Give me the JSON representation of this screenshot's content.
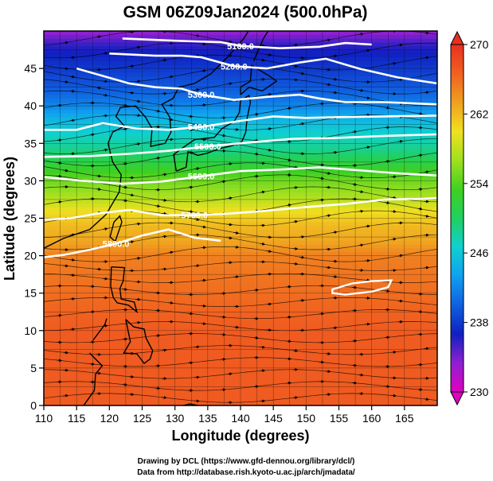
{
  "chart_data": {
    "type": "heatmap",
    "title": "GSM 06Z09Jan2024 (500.0hPa)",
    "xlabel": "Longitude (degrees)",
    "ylabel": "Latitude  (degrees)",
    "xlim": [
      110,
      170
    ],
    "ylim": [
      0,
      50
    ],
    "x_ticks": [
      110,
      115,
      120,
      125,
      130,
      135,
      140,
      145,
      150,
      155,
      160,
      165
    ],
    "y_ticks": [
      0,
      5,
      10,
      15,
      20,
      25,
      30,
      35,
      40,
      45
    ],
    "colorbar": {
      "min": 230,
      "max": 270,
      "ticks": [
        230,
        238,
        246,
        254,
        262,
        270
      ],
      "colors": [
        "#e000c0",
        "#9020d0",
        "#1020c0",
        "#1060e0",
        "#10a0f0",
        "#10d0d0",
        "#20d060",
        "#40d020",
        "#a0e020",
        "#f0e020",
        "#f0a020",
        "#f06020",
        "#e83020"
      ]
    },
    "temperature_bands": [
      {
        "lat": 0,
        "value": 267
      },
      {
        "lat": 10,
        "value": 267
      },
      {
        "lat": 15,
        "value": 266
      },
      {
        "lat": 20,
        "value": 265
      },
      {
        "lat": 22,
        "value": 263
      },
      {
        "lat": 24,
        "value": 262
      },
      {
        "lat": 26,
        "value": 260
      },
      {
        "lat": 28,
        "value": 257
      },
      {
        "lat": 30,
        "value": 255
      },
      {
        "lat": 32,
        "value": 252
      },
      {
        "lat": 34,
        "value": 249
      },
      {
        "lat": 36,
        "value": 247
      },
      {
        "lat": 38,
        "value": 245
      },
      {
        "lat": 40,
        "value": 242
      },
      {
        "lat": 42,
        "value": 240
      },
      {
        "lat": 45,
        "value": 238
      },
      {
        "lat": 48,
        "value": 236
      },
      {
        "lat": 50,
        "value": 233
      }
    ],
    "height_contours": [
      {
        "label": "5100.0",
        "points": [
          [
            122,
            49
          ],
          [
            130,
            48.7
          ],
          [
            137,
            48.5
          ],
          [
            140,
            48.0
          ],
          [
            146,
            47.7
          ],
          [
            152,
            47.9
          ],
          [
            156,
            48.4
          ],
          [
            160,
            48.2
          ]
        ]
      },
      {
        "label": "5200.0",
        "points": [
          [
            120,
            47
          ],
          [
            127,
            46.7
          ],
          [
            131,
            46.7
          ],
          [
            134,
            46.5
          ],
          [
            139,
            45.3
          ],
          [
            144,
            45.0
          ],
          [
            149,
            45.8
          ],
          [
            153,
            46.3
          ],
          [
            158,
            45.0
          ],
          [
            164,
            43.8
          ],
          [
            170,
            43.0
          ]
        ]
      },
      {
        "label": "5300.0",
        "points": [
          [
            115,
            45.0
          ],
          [
            119,
            44.0
          ],
          [
            123,
            43.0
          ],
          [
            127,
            42.5
          ],
          [
            131,
            42.3
          ],
          [
            134,
            41.5
          ],
          [
            139,
            40.8
          ],
          [
            144,
            41.2
          ],
          [
            149,
            41.5
          ],
          [
            152,
            41.0
          ],
          [
            156,
            40.5
          ],
          [
            162,
            40.5
          ],
          [
            170,
            40.2
          ]
        ]
      },
      {
        "label": "5400.0",
        "points": [
          [
            110,
            36.8
          ],
          [
            115,
            36.8
          ],
          [
            119,
            37.7
          ],
          [
            124,
            37.0
          ],
          [
            129,
            36.8
          ],
          [
            134,
            37.2
          ],
          [
            140,
            38.0
          ],
          [
            145,
            38.6
          ],
          [
            150,
            38.4
          ],
          [
            155,
            38.5
          ],
          [
            162,
            38.6
          ],
          [
            170,
            38.7
          ]
        ]
      },
      {
        "label": "5500.0",
        "points": [
          [
            110,
            33.2
          ],
          [
            117,
            33.3
          ],
          [
            123,
            33.6
          ],
          [
            129,
            34.0
          ],
          [
            135,
            34.6
          ],
          [
            141,
            35.1
          ],
          [
            148,
            35.6
          ],
          [
            154,
            35.7
          ],
          [
            162,
            36.0
          ],
          [
            170,
            36.2
          ]
        ]
      },
      {
        "label": "5600.0",
        "points": [
          [
            110,
            30.5
          ],
          [
            116,
            30.0
          ],
          [
            122,
            29.6
          ],
          [
            128,
            29.9
          ],
          [
            134,
            30.6
          ],
          [
            140,
            31.3
          ],
          [
            146,
            31.5
          ],
          [
            152,
            31.8
          ],
          [
            158,
            31.4
          ],
          [
            164,
            31.0
          ],
          [
            170,
            30.7
          ]
        ]
      },
      {
        "label": "5700.0",
        "points": [
          [
            110,
            24.8
          ],
          [
            114,
            25.0
          ],
          [
            118,
            25.6
          ],
          [
            123,
            26.1
          ],
          [
            128,
            25.4
          ],
          [
            133,
            25.4
          ],
          [
            138,
            25.6
          ],
          [
            144,
            26.0
          ],
          [
            150,
            26.5
          ],
          [
            156,
            26.9
          ],
          [
            162,
            27.5
          ],
          [
            168,
            27.6
          ],
          [
            170,
            27.7
          ]
        ]
      },
      {
        "label": "5800.0",
        "points": [
          [
            110,
            19.8
          ],
          [
            113,
            20.1
          ],
          [
            117,
            20.8
          ],
          [
            121,
            21.6
          ],
          [
            125,
            22.7
          ],
          [
            129,
            23.5
          ],
          [
            133,
            22.4
          ],
          [
            137,
            22.0
          ]
        ]
      }
    ],
    "closed_contours": [
      {
        "label": "",
        "points": [
          [
            154,
            15.5
          ],
          [
            157,
            16.3
          ],
          [
            160,
            16.6
          ],
          [
            163,
            16.7
          ],
          [
            162.5,
            15.8
          ],
          [
            160,
            15.2
          ],
          [
            156,
            14.8
          ],
          [
            154,
            15.0
          ]
        ]
      }
    ],
    "grid": true,
    "streamlines": true
  },
  "credits": {
    "line1": "Drawing by DCL (https://www.gfd-dennou.org/library/dcl/)",
    "line2": "Data from http://database.rish.kyoto-u.ac.jp/arch/jmadata/"
  }
}
